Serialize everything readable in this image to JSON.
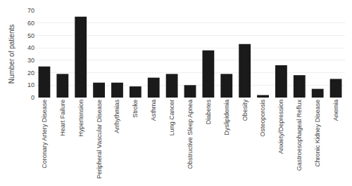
{
  "chart_data": {
    "type": "bar",
    "categories": [
      "Coronary Artery Disease",
      "Heart Failure",
      "Hypertension",
      "Peripheral Vascular Disease",
      "Arrhythmias",
      "Stroke",
      "Asthma",
      "Lung Cancer",
      "Obstructive Sleep Apnea",
      "Diabetes",
      "Dyslipidemia",
      "Obesity",
      "Osteoporosis",
      "Anxiety/Depression",
      "Gastroesophageal Reflux",
      "Chronic Kidney Disease",
      "Anemia"
    ],
    "values": [
      25,
      19,
      65,
      12,
      12,
      9,
      16,
      19,
      10,
      38,
      19,
      43,
      2,
      26,
      18,
      7,
      15
    ],
    "color": "#1a1a1a",
    "ylabel": "Number of patients",
    "ylim": [
      0,
      70
    ],
    "yticks": [
      0,
      10,
      20,
      30,
      40,
      50,
      60,
      70
    ],
    "grid": true
  }
}
